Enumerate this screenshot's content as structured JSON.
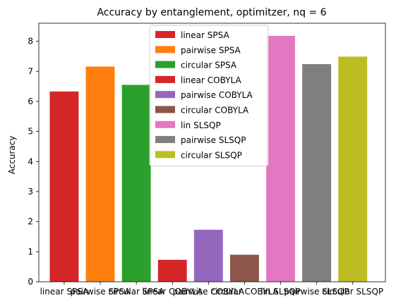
{
  "chart_data": {
    "type": "bar",
    "title": "Accuracy by entanglement, optimitzer, nq = 6",
    "xlabel": "",
    "ylabel": "Accuracy",
    "ylim": [
      0,
      8.6
    ],
    "yticks": [
      0,
      1,
      2,
      3,
      4,
      5,
      6,
      7,
      8
    ],
    "grid": false,
    "legend_position": "top-center",
    "categories": [
      "linear SPSA",
      "pairwise SPSA",
      "circular SPSA",
      "linear COBYLA",
      "pairwise COBYLA",
      "circular COBYLA",
      "lin SLSQP",
      "pairwise SLSQP",
      "circular SLSQP"
    ],
    "values": [
      6.33,
      7.16,
      6.55,
      0.73,
      1.73,
      0.9,
      8.18,
      7.24,
      7.49
    ],
    "colors": [
      "#d62728",
      "#ff7f0e",
      "#2ca02c",
      "#d62728",
      "#9467bd",
      "#8c564b",
      "#e377c2",
      "#7f7f7f",
      "#bcbd22"
    ],
    "legend": [
      "linear SPSA",
      "pairwise SPSA",
      "circular SPSA",
      "linear COBYLA",
      "pairwise COBYLA",
      "circular COBYLA",
      "lin SLSQP",
      "pairwise SLSQP",
      "circular SLSQP"
    ]
  }
}
